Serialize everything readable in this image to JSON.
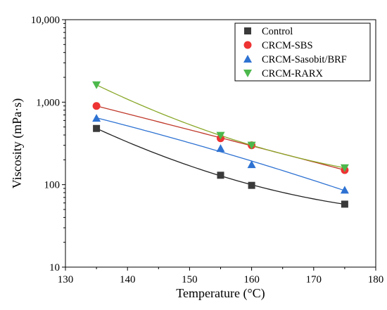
{
  "chart_data": {
    "type": "scatter",
    "title": "",
    "xlabel": "Temperature (°C)",
    "ylabel": "Viscosity (mPa·s)",
    "xlim": [
      130,
      180
    ],
    "ylim": [
      10,
      10000
    ],
    "yscale": "log",
    "x_ticks": [
      130,
      140,
      150,
      160,
      170,
      180
    ],
    "y_ticks": [
      10,
      100,
      1000,
      10000
    ],
    "x_tick_labels": [
      "130",
      "140",
      "150",
      "160",
      "170",
      "180"
    ],
    "y_tick_labels": [
      "10",
      "100",
      "1,000",
      "10,000"
    ],
    "grid": false,
    "legend_position": "top-right",
    "x": [
      135,
      155,
      160,
      175
    ],
    "series": [
      {
        "name": "Control",
        "marker": "square",
        "color": "#3a3a3a",
        "line_color": "#222222",
        "values": [
          480,
          130,
          98,
          58
        ]
      },
      {
        "name": "CRCM-SBS",
        "marker": "circle",
        "color": "#ee3333",
        "line_color": "#c0392b",
        "values": [
          900,
          365,
          300,
          150
        ]
      },
      {
        "name": "CRCM-Sasobit/BRF",
        "marker": "triangle-up",
        "color": "#2e72d2",
        "line_color": "#2e72d2",
        "values": [
          640,
          275,
          175,
          86
        ]
      },
      {
        "name": "CRCM-RARX",
        "marker": "triangle-down",
        "color": "#4cb84c",
        "line_color": "#8aa82a",
        "values": [
          1620,
          395,
          300,
          160
        ]
      }
    ]
  }
}
